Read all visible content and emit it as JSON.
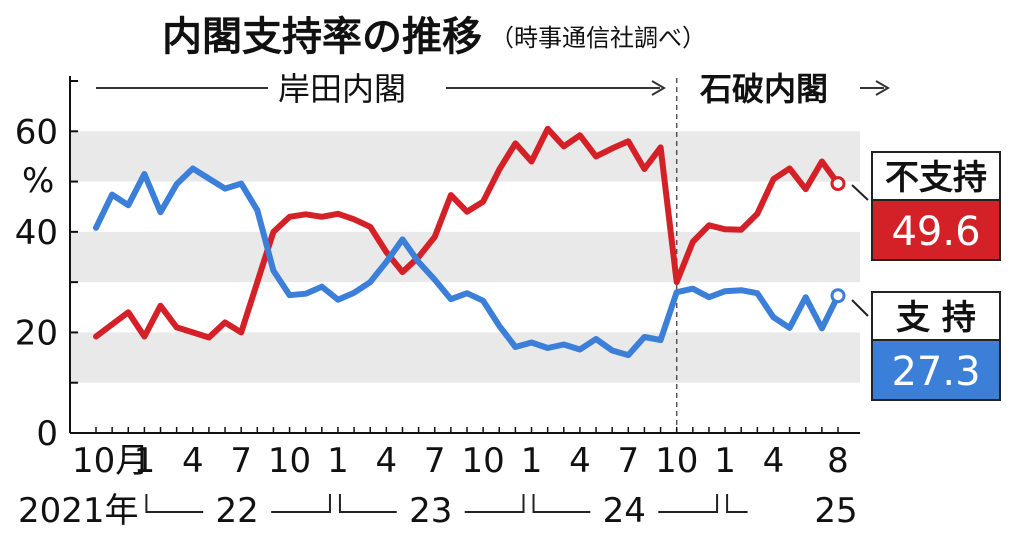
{
  "title": "内閣支持率の推移",
  "subtitle": "（時事通信社調べ）",
  "eras": [
    {
      "label": "岸田内閣",
      "start": 0,
      "end": 36
    },
    {
      "label": "石破内閣",
      "start": 36,
      "end": 46
    }
  ],
  "x_labels": [
    {
      "i": 0,
      "text": "10月"
    },
    {
      "i": 3,
      "text": "1"
    },
    {
      "i": 6,
      "text": "4"
    },
    {
      "i": 9,
      "text": "7"
    },
    {
      "i": 12,
      "text": "10"
    },
    {
      "i": 15,
      "text": "1"
    },
    {
      "i": 18,
      "text": "4"
    },
    {
      "i": 21,
      "text": "7"
    },
    {
      "i": 24,
      "text": "10"
    },
    {
      "i": 27,
      "text": "1"
    },
    {
      "i": 30,
      "text": "4"
    },
    {
      "i": 33,
      "text": "7"
    },
    {
      "i": 36,
      "text": "10"
    },
    {
      "i": 39,
      "text": "1"
    },
    {
      "i": 42,
      "text": "4"
    },
    {
      "i": 46,
      "text": "8"
    }
  ],
  "years": [
    {
      "label": "2021年",
      "i": 0
    },
    {
      "label": "22",
      "i": 3
    },
    {
      "label": "23",
      "i": 15
    },
    {
      "label": "24",
      "i": 27
    },
    {
      "label": "25",
      "i": 39
    }
  ],
  "y_ticks": [
    {
      "value": 0,
      "text": "0"
    },
    {
      "value": 20,
      "text": "20"
    },
    {
      "value": 40,
      "text": "40"
    },
    {
      "value": 60,
      "text": "60"
    }
  ],
  "y_unit": "%",
  "chart_data": {
    "type": "line",
    "x": [
      "2021-10",
      "2021-11",
      "2021-12",
      "2022-01",
      "2022-02",
      "2022-03",
      "2022-04",
      "2022-05",
      "2022-06",
      "2022-07",
      "2022-08",
      "2022-09",
      "2022-10",
      "2022-11",
      "2022-12",
      "2023-01",
      "2023-02",
      "2023-03",
      "2023-04",
      "2023-05",
      "2023-06",
      "2023-07",
      "2023-08",
      "2023-09",
      "2023-10",
      "2023-11",
      "2023-12",
      "2024-01",
      "2024-02",
      "2024-03",
      "2024-04",
      "2024-05",
      "2024-06",
      "2024-07",
      "2024-08",
      "2024-09",
      "2024-10",
      "2024-11",
      "2024-12",
      "2025-01",
      "2025-02",
      "2025-03",
      "2025-04",
      "2025-05",
      "2025-06",
      "2025-07",
      "2025-08"
    ],
    "ylim": [
      0,
      70
    ],
    "grid": "horizontal bands",
    "legend": "right, end of lines",
    "series": [
      {
        "name": "不支持",
        "color": "#d42027",
        "values": [
          19.2,
          21.6,
          24.0,
          19.2,
          25.3,
          21.0,
          20.0,
          19.0,
          22.0,
          20.0,
          30.0,
          40.0,
          43.0,
          43.5,
          43.0,
          43.6,
          42.5,
          41.0,
          36.0,
          32.0,
          35.0,
          39.0,
          47.3,
          44.0,
          46.0,
          52.4,
          57.6,
          54.0,
          60.5,
          57.0,
          59.2,
          55.0,
          56.6,
          58.0,
          52.5,
          56.8,
          30.0,
          38.0,
          41.3,
          40.5,
          40.4,
          43.6,
          50.5,
          52.6,
          48.5,
          54.0,
          49.6
        ]
      },
      {
        "name": "支持",
        "color": "#3b7fd9",
        "values": [
          40.8,
          47.4,
          45.3,
          51.5,
          43.9,
          49.5,
          52.6,
          50.6,
          48.6,
          49.6,
          44.3,
          32.3,
          27.4,
          27.7,
          29.1,
          26.5,
          27.9,
          30.0,
          34.0,
          38.5,
          34.0,
          30.5,
          26.6,
          27.8,
          26.3,
          21.3,
          17.1,
          18.0,
          16.9,
          17.6,
          16.6,
          18.7,
          16.4,
          15.5,
          19.1,
          18.5,
          28.0,
          28.7,
          27.0,
          28.2,
          28.4,
          27.8,
          23.0,
          20.9,
          27.0,
          20.8,
          27.3
        ]
      }
    ]
  },
  "legend": [
    {
      "name": "不支持",
      "value": "49.6",
      "color": "#d42027"
    },
    {
      "name": "支 持",
      "value": "27.3",
      "color": "#3b7fd9"
    }
  ]
}
